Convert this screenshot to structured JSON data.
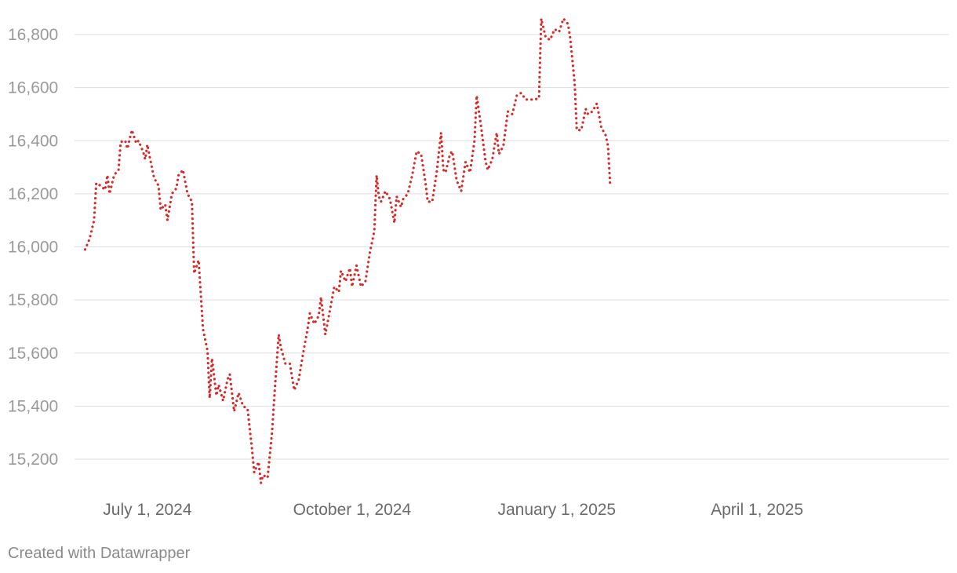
{
  "chart_data": {
    "type": "line",
    "title": "",
    "xlabel": "",
    "ylabel": "",
    "ylim": [
      15100,
      16870
    ],
    "y_ticks": [
      15200,
      15400,
      15600,
      15800,
      16000,
      16200,
      16400,
      16600,
      16800
    ],
    "y_tick_labels": [
      "15,200",
      "15,400",
      "15,600",
      "15,800",
      "16,000",
      "16,200",
      "16,400",
      "16,600",
      "16,800"
    ],
    "x_ticks": [
      {
        "date": "2024-07-01",
        "label": "July 1, 2024"
      },
      {
        "date": "2024-10-01",
        "label": "October 1, 2024"
      },
      {
        "date": "2025-01-01",
        "label": "January 1, 2025"
      },
      {
        "date": "2025-04-01",
        "label": "April 1, 2025"
      }
    ],
    "xlim": [
      "2024-05-31",
      "2025-06-20"
    ],
    "grid": true,
    "line_style": "dotted",
    "series": [
      {
        "color": "#d62b2b",
        "points": [
          [
            "2024-06-03",
            15990
          ],
          [
            "2024-06-05",
            16030
          ],
          [
            "2024-06-07",
            16100
          ],
          [
            "2024-06-08",
            16240
          ],
          [
            "2024-06-10",
            16230
          ],
          [
            "2024-06-12",
            16215
          ],
          [
            "2024-06-13",
            16270
          ],
          [
            "2024-06-14",
            16200
          ],
          [
            "2024-06-16",
            16270
          ],
          [
            "2024-06-18",
            16290
          ],
          [
            "2024-06-19",
            16395
          ],
          [
            "2024-06-21",
            16400
          ],
          [
            "2024-06-22",
            16370
          ],
          [
            "2024-06-24",
            16440
          ],
          [
            "2024-06-26",
            16390
          ],
          [
            "2024-06-27",
            16400
          ],
          [
            "2024-06-29",
            16360
          ],
          [
            "2024-06-30",
            16330
          ],
          [
            "2024-07-01",
            16385
          ],
          [
            "2024-07-02",
            16340
          ],
          [
            "2024-07-04",
            16260
          ],
          [
            "2024-07-06",
            16230
          ],
          [
            "2024-07-07",
            16140
          ],
          [
            "2024-07-09",
            16160
          ],
          [
            "2024-07-10",
            16100
          ],
          [
            "2024-07-12",
            16200
          ],
          [
            "2024-07-14",
            16220
          ],
          [
            "2024-07-15",
            16270
          ],
          [
            "2024-07-17",
            16290
          ],
          [
            "2024-07-19",
            16200
          ],
          [
            "2024-07-21",
            16170
          ],
          [
            "2024-07-22",
            15900
          ],
          [
            "2024-07-24",
            15950
          ],
          [
            "2024-07-26",
            15690
          ],
          [
            "2024-07-28",
            15610
          ],
          [
            "2024-07-29",
            15430
          ],
          [
            "2024-07-30",
            15580
          ],
          [
            "2024-08-01",
            15440
          ],
          [
            "2024-08-02",
            15480
          ],
          [
            "2024-08-04",
            15420
          ],
          [
            "2024-08-06",
            15500
          ],
          [
            "2024-08-07",
            15520
          ],
          [
            "2024-08-09",
            15380
          ],
          [
            "2024-08-11",
            15450
          ],
          [
            "2024-08-13",
            15400
          ],
          [
            "2024-08-15",
            15390
          ],
          [
            "2024-08-17",
            15240
          ],
          [
            "2024-08-18",
            15150
          ],
          [
            "2024-08-20",
            15190
          ],
          [
            "2024-08-21",
            15110
          ],
          [
            "2024-08-22",
            15140
          ],
          [
            "2024-08-24",
            15130
          ],
          [
            "2024-08-26",
            15300
          ],
          [
            "2024-08-27",
            15430
          ],
          [
            "2024-08-29",
            15670
          ],
          [
            "2024-08-30",
            15620
          ],
          [
            "2024-09-01",
            15560
          ],
          [
            "2024-09-03",
            15560
          ],
          [
            "2024-09-05",
            15460
          ],
          [
            "2024-09-07",
            15500
          ],
          [
            "2024-09-09",
            15600
          ],
          [
            "2024-09-11",
            15690
          ],
          [
            "2024-09-12",
            15750
          ],
          [
            "2024-09-14",
            15710
          ],
          [
            "2024-09-16",
            15740
          ],
          [
            "2024-09-17",
            15810
          ],
          [
            "2024-09-19",
            15670
          ],
          [
            "2024-09-21",
            15760
          ],
          [
            "2024-09-23",
            15850
          ],
          [
            "2024-09-25",
            15830
          ],
          [
            "2024-09-26",
            15910
          ],
          [
            "2024-09-28",
            15870
          ],
          [
            "2024-09-30",
            15920
          ],
          [
            "2024-10-01",
            15850
          ],
          [
            "2024-10-03",
            15930
          ],
          [
            "2024-10-05",
            15850
          ],
          [
            "2024-10-07",
            15870
          ],
          [
            "2024-10-09",
            15980
          ],
          [
            "2024-10-11",
            16060
          ],
          [
            "2024-10-12",
            16270
          ],
          [
            "2024-10-13",
            16190
          ],
          [
            "2024-10-14",
            16170
          ],
          [
            "2024-10-16",
            16210
          ],
          [
            "2024-10-18",
            16180
          ],
          [
            "2024-10-20",
            16090
          ],
          [
            "2024-10-21",
            16190
          ],
          [
            "2024-10-23",
            16150
          ],
          [
            "2024-10-24",
            16180
          ],
          [
            "2024-10-26",
            16200
          ],
          [
            "2024-10-28",
            16270
          ],
          [
            "2024-10-30",
            16360
          ],
          [
            "2024-11-01",
            16350
          ],
          [
            "2024-11-03",
            16240
          ],
          [
            "2024-11-04",
            16170
          ],
          [
            "2024-11-06",
            16170
          ],
          [
            "2024-11-08",
            16280
          ],
          [
            "2024-11-10",
            16430
          ],
          [
            "2024-11-11",
            16290
          ],
          [
            "2024-11-12",
            16280
          ],
          [
            "2024-11-14",
            16350
          ],
          [
            "2024-11-15",
            16360
          ],
          [
            "2024-11-17",
            16250
          ],
          [
            "2024-11-19",
            16210
          ],
          [
            "2024-11-21",
            16320
          ],
          [
            "2024-11-23",
            16280
          ],
          [
            "2024-11-25",
            16400
          ],
          [
            "2024-11-26",
            16570
          ],
          [
            "2024-11-28",
            16450
          ],
          [
            "2024-11-30",
            16320
          ],
          [
            "2024-12-01",
            16290
          ],
          [
            "2024-12-03",
            16330
          ],
          [
            "2024-12-05",
            16430
          ],
          [
            "2024-12-06",
            16350
          ],
          [
            "2024-12-08",
            16380
          ],
          [
            "2024-12-10",
            16510
          ],
          [
            "2024-12-12",
            16500
          ],
          [
            "2024-12-14",
            16570
          ],
          [
            "2024-12-16",
            16580
          ],
          [
            "2024-12-18",
            16555
          ],
          [
            "2024-12-22",
            16555
          ],
          [
            "2024-12-24",
            16560
          ],
          [
            "2024-12-25",
            16860
          ],
          [
            "2024-12-27",
            16790
          ],
          [
            "2024-12-29",
            16780
          ],
          [
            "2024-12-31",
            16820
          ],
          [
            "2025-01-02",
            16810
          ],
          [
            "2025-01-04",
            16860
          ],
          [
            "2025-01-06",
            16840
          ],
          [
            "2025-01-07",
            16790
          ],
          [
            "2025-01-09",
            16620
          ],
          [
            "2025-01-10",
            16440
          ],
          [
            "2025-01-12",
            16440
          ],
          [
            "2025-01-14",
            16520
          ],
          [
            "2025-01-15",
            16500
          ],
          [
            "2025-01-17",
            16510
          ],
          [
            "2025-01-19",
            16540
          ],
          [
            "2025-01-21",
            16450
          ],
          [
            "2025-01-23",
            16420
          ],
          [
            "2025-01-24",
            16380
          ],
          [
            "2025-01-25",
            16230
          ]
        ]
      }
    ]
  },
  "credit": "Created with Datawrapper"
}
